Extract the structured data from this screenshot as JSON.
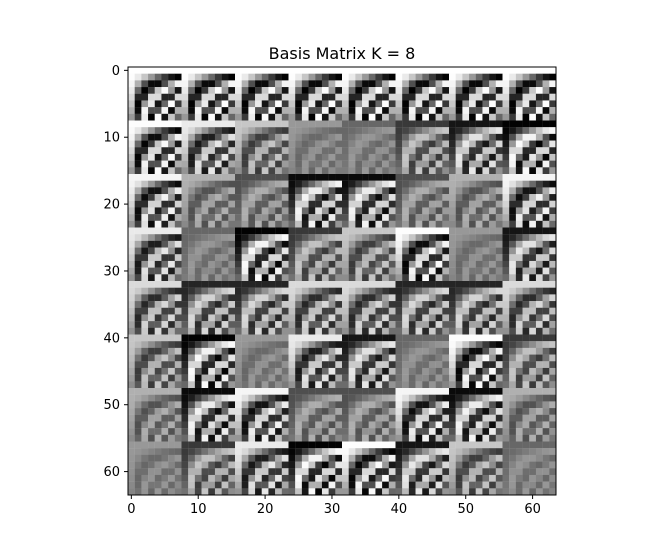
{
  "chart_data": {
    "type": "heatmap",
    "title": "Basis Matrix K = 8",
    "xlabel": "",
    "ylabel": "",
    "block_size": 8,
    "rows": 64,
    "cols": 64,
    "colormap": "gray",
    "xlim": [
      -0.5,
      63.5
    ],
    "ylim": [
      63.5,
      -0.5
    ],
    "x_ticks": [
      0,
      10,
      20,
      30,
      40,
      50,
      60
    ],
    "y_ticks": [
      0,
      10,
      20,
      30,
      40,
      50,
      60
    ],
    "x_tick_labels": [
      "0",
      "10",
      "20",
      "30",
      "40",
      "50",
      "60"
    ],
    "y_tick_labels": [
      "0",
      "10",
      "20",
      "30",
      "40",
      "50",
      "60"
    ],
    "grid": false
  }
}
